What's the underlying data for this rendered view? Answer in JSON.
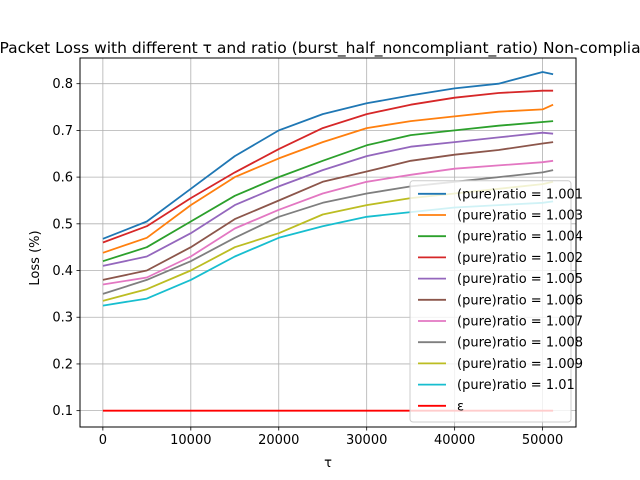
{
  "chart_data": {
    "type": "line",
    "title": "Packet Loss with different τ and ratio (burst_half_noncompliant_ratio) Non-compliant",
    "xlabel": "τ",
    "ylabel": "Loss (%)",
    "xlim": [
      -2600,
      53800
    ],
    "ylim": [
      0.065,
      0.855
    ],
    "xticks": [
      0,
      10000,
      20000,
      30000,
      40000,
      50000
    ],
    "xtick_labels": [
      "0",
      "10000",
      "20000",
      "30000",
      "40000",
      "50000"
    ],
    "yticks": [
      0.1,
      0.2,
      0.3,
      0.4,
      0.5,
      0.6,
      0.7,
      0.8
    ],
    "ytick_labels": [
      "0.1",
      "0.2",
      "0.3",
      "0.4",
      "0.5",
      "0.6",
      "0.7",
      "0.8"
    ],
    "grid": true,
    "legend_position": "lower-right",
    "x": [
      0,
      5000,
      10000,
      15000,
      20000,
      25000,
      30000,
      35000,
      40000,
      45000,
      50000,
      51200
    ],
    "series": [
      {
        "name": "(pure)ratio = 1.001",
        "color": "#1f77b4",
        "values": [
          0.468,
          0.505,
          0.575,
          0.645,
          0.7,
          0.735,
          0.758,
          0.775,
          0.79,
          0.8,
          0.825,
          0.82
        ]
      },
      {
        "name": "(pure)ratio = 1.003",
        "color": "#ff7f0e",
        "values": [
          0.438,
          0.47,
          0.54,
          0.6,
          0.64,
          0.675,
          0.705,
          0.72,
          0.73,
          0.74,
          0.745,
          0.755
        ]
      },
      {
        "name": "(pure)ratio = 1.004",
        "color": "#2ca02c",
        "values": [
          0.42,
          0.45,
          0.505,
          0.56,
          0.6,
          0.635,
          0.668,
          0.69,
          0.7,
          0.71,
          0.718,
          0.72
        ]
      },
      {
        "name": "(pure)ratio = 1.002",
        "color": "#d62728",
        "values": [
          0.46,
          0.495,
          0.555,
          0.61,
          0.66,
          0.705,
          0.735,
          0.755,
          0.77,
          0.78,
          0.785,
          0.785
        ]
      },
      {
        "name": "(pure)ratio = 1.005",
        "color": "#9467bd",
        "values": [
          0.41,
          0.43,
          0.48,
          0.54,
          0.58,
          0.615,
          0.645,
          0.665,
          0.675,
          0.685,
          0.695,
          0.693
        ]
      },
      {
        "name": "(pure)ratio = 1.006",
        "color": "#8c564b",
        "values": [
          0.38,
          0.4,
          0.45,
          0.51,
          0.55,
          0.59,
          0.612,
          0.635,
          0.648,
          0.658,
          0.672,
          0.675
        ]
      },
      {
        "name": "(pure)ratio = 1.007",
        "color": "#e377c2",
        "values": [
          0.37,
          0.385,
          0.43,
          0.49,
          0.53,
          0.565,
          0.59,
          0.605,
          0.618,
          0.625,
          0.632,
          0.635
        ]
      },
      {
        "name": "(pure)ratio = 1.008",
        "color": "#7f7f7f",
        "values": [
          0.35,
          0.38,
          0.42,
          0.47,
          0.515,
          0.545,
          0.565,
          0.58,
          0.59,
          0.6,
          0.61,
          0.615
        ]
      },
      {
        "name": "(pure)ratio = 1.009",
        "color": "#bcbd22",
        "values": [
          0.335,
          0.36,
          0.4,
          0.45,
          0.48,
          0.52,
          0.54,
          0.555,
          0.565,
          0.575,
          0.585,
          0.59
        ]
      },
      {
        "name": "(pure)ratio = 1.01",
        "color": "#17becf",
        "values": [
          0.325,
          0.34,
          0.38,
          0.43,
          0.47,
          0.495,
          0.515,
          0.525,
          0.535,
          0.54,
          0.545,
          0.548
        ]
      },
      {
        "name": "ε",
        "color": "#ff0000",
        "values": [
          0.1,
          0.1,
          0.1,
          0.1,
          0.1,
          0.1,
          0.1,
          0.1,
          0.1,
          0.1,
          0.1,
          0.1
        ]
      }
    ]
  }
}
